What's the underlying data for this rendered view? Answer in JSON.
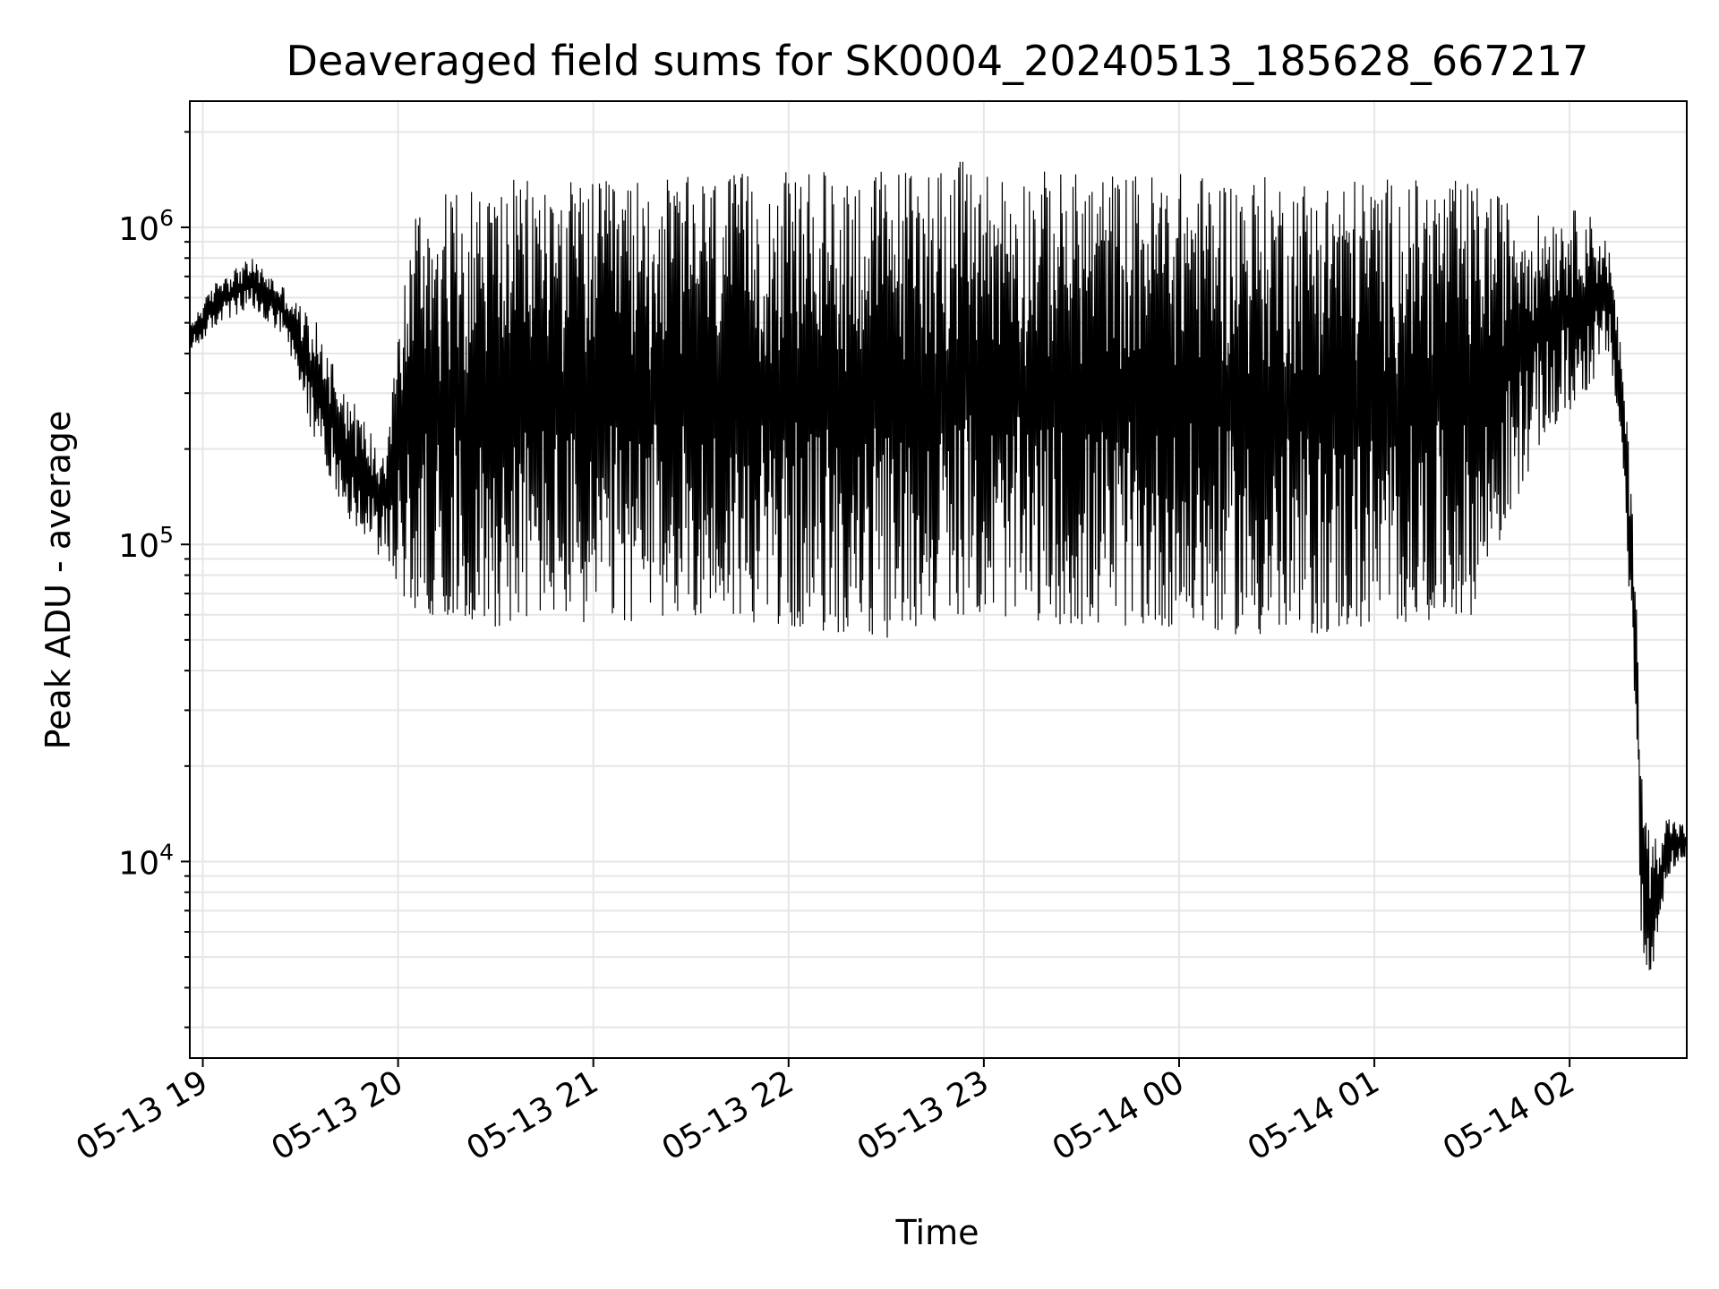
{
  "chart_data": {
    "type": "line",
    "title": "Deaveraged field sums for SK0004_20240513_185628_667217",
    "xlabel": "Time",
    "ylabel": "Peak ADU - average",
    "x_scale": "time",
    "y_scale": "log",
    "grid": true,
    "grid_color": "#e6e6e6",
    "line_color": "#000000",
    "xlim": [
      "2024-05-13 18:56",
      "2024-05-14 02:36"
    ],
    "ylim": [
      2400,
      2500000
    ],
    "x_ticks": [
      {
        "time": "2024-05-13 19:00",
        "label": "05-13 19"
      },
      {
        "time": "2024-05-13 20:00",
        "label": "05-13 20"
      },
      {
        "time": "2024-05-13 21:00",
        "label": "05-13 21"
      },
      {
        "time": "2024-05-13 22:00",
        "label": "05-13 22"
      },
      {
        "time": "2024-05-13 23:00",
        "label": "05-13 23"
      },
      {
        "time": "2024-05-14 00:00",
        "label": "05-14 00"
      },
      {
        "time": "2024-05-14 01:00",
        "label": "05-14 01"
      },
      {
        "time": "2024-05-14 02:00",
        "label": "05-14 02"
      }
    ],
    "y_ticks": [
      {
        "value": 10000,
        "base": "10",
        "exp": "4"
      },
      {
        "value": 100000,
        "base": "10",
        "exp": "5"
      },
      {
        "value": 1000000,
        "base": "10",
        "exp": "6"
      }
    ],
    "series": [
      {
        "x": [
          "2024-05-13 18:56",
          "2024-05-13 19:05",
          "2024-05-13 19:15",
          "2024-05-13 19:25",
          "2024-05-13 19:35",
          "2024-05-13 19:45",
          "2024-05-13 19:55",
          "2024-05-13 20:05",
          "2024-05-13 20:15",
          "2024-05-13 20:30",
          "2024-05-13 20:45",
          "2024-05-13 21:00",
          "2024-05-13 21:30",
          "2024-05-13 22:00",
          "2024-05-13 22:30",
          "2024-05-13 22:50",
          "2024-05-13 23:00",
          "2024-05-13 23:30",
          "2024-05-14 00:00",
          "2024-05-14 00:30",
          "2024-05-14 01:00",
          "2024-05-14 01:30",
          "2024-05-14 01:50",
          "2024-05-14 02:05",
          "2024-05-14 02:12",
          "2024-05-14 02:16",
          "2024-05-14 02:20",
          "2024-05-14 02:22",
          "2024-05-14 02:24",
          "2024-05-14 02:26",
          "2024-05-14 02:30",
          "2024-05-14 02:36"
        ],
        "upper": [
          500000,
          700000,
          800000,
          650000,
          500000,
          300000,
          200000,
          1200000,
          1300000,
          1400000,
          1450000,
          1400000,
          1450000,
          1500000,
          1550000,
          1650000,
          1550000,
          1500000,
          1500000,
          1450000,
          1450000,
          1400000,
          1100000,
          1150000,
          900000,
          400000,
          120000,
          20000,
          13000,
          12000,
          14000,
          13000
        ],
        "lower": [
          400000,
          500000,
          550000,
          450000,
          200000,
          120000,
          90000,
          60000,
          60000,
          55000,
          60000,
          55000,
          60000,
          55000,
          50000,
          60000,
          60000,
          55000,
          55000,
          50000,
          55000,
          60000,
          200000,
          300000,
          400000,
          200000,
          30000,
          6000,
          3500,
          5000,
          9000,
          10000
        ]
      }
    ]
  }
}
